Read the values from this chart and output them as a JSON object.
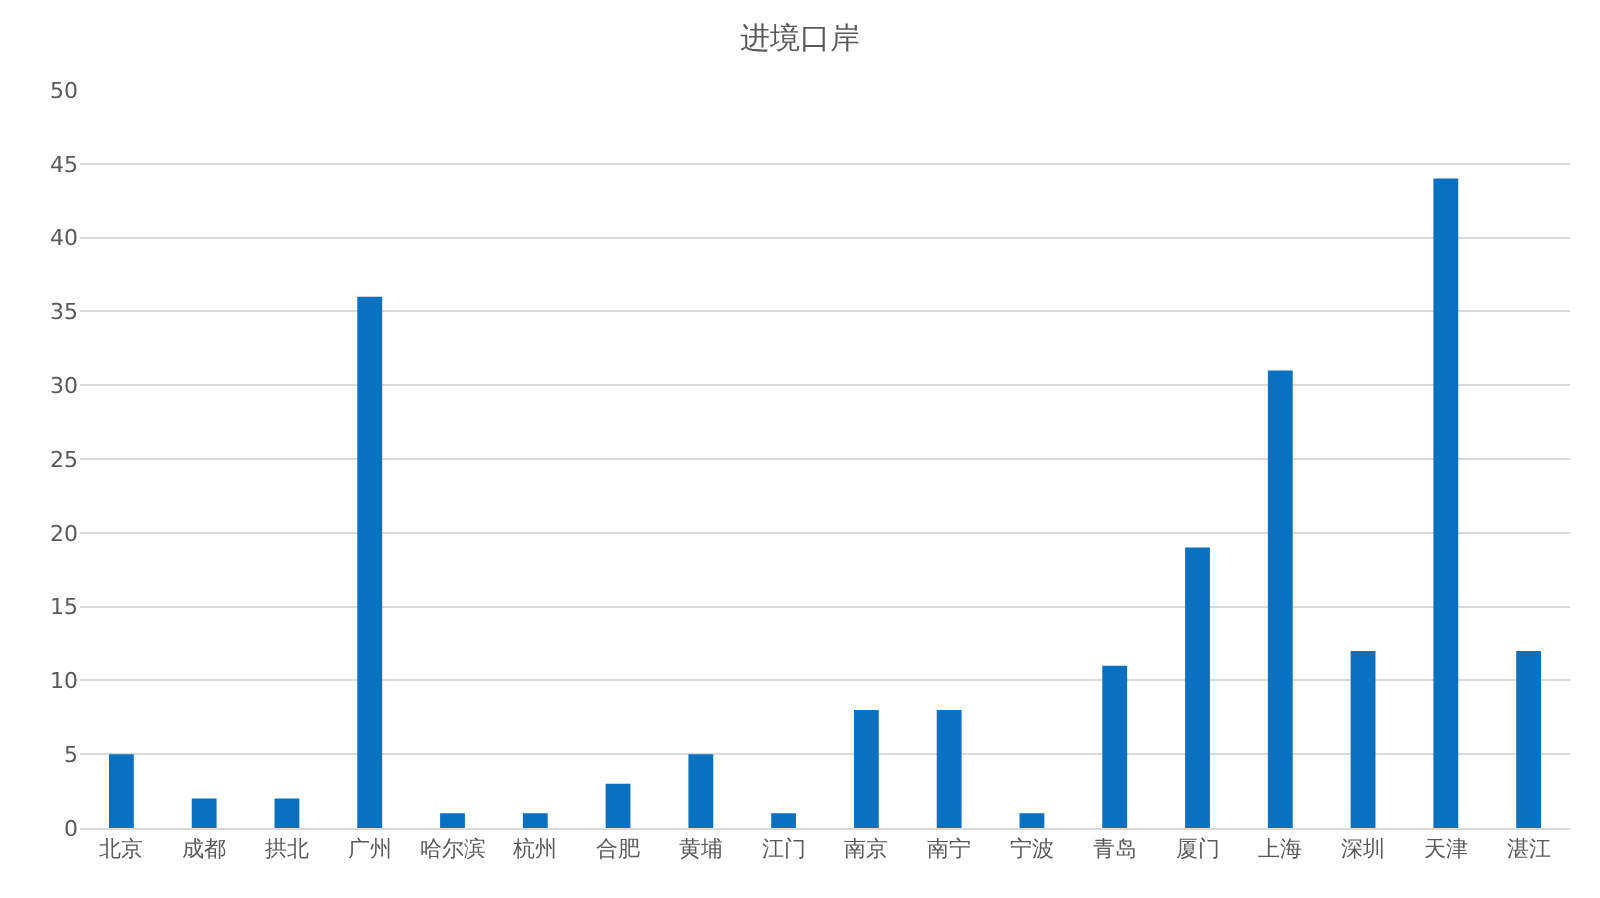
{
  "chart_data": {
    "type": "bar",
    "title": "进境口岸",
    "categories": [
      "北京",
      "成都",
      "拱北",
      "广州",
      "哈尔滨",
      "杭州",
      "合肥",
      "黄埔",
      "江门",
      "南京",
      "南宁",
      "宁波",
      "青岛",
      "厦门",
      "上海",
      "深圳",
      "天津",
      "湛江"
    ],
    "values": [
      5,
      2,
      2,
      36,
      1,
      1,
      3,
      5,
      1,
      8,
      8,
      1,
      11,
      19,
      31,
      12,
      44,
      12
    ],
    "color": "#0a70c0",
    "ylim": [
      0,
      50
    ],
    "yticks": [
      0,
      5,
      10,
      15,
      20,
      25,
      30,
      35,
      40,
      45,
      50
    ],
    "grid": "y"
  }
}
